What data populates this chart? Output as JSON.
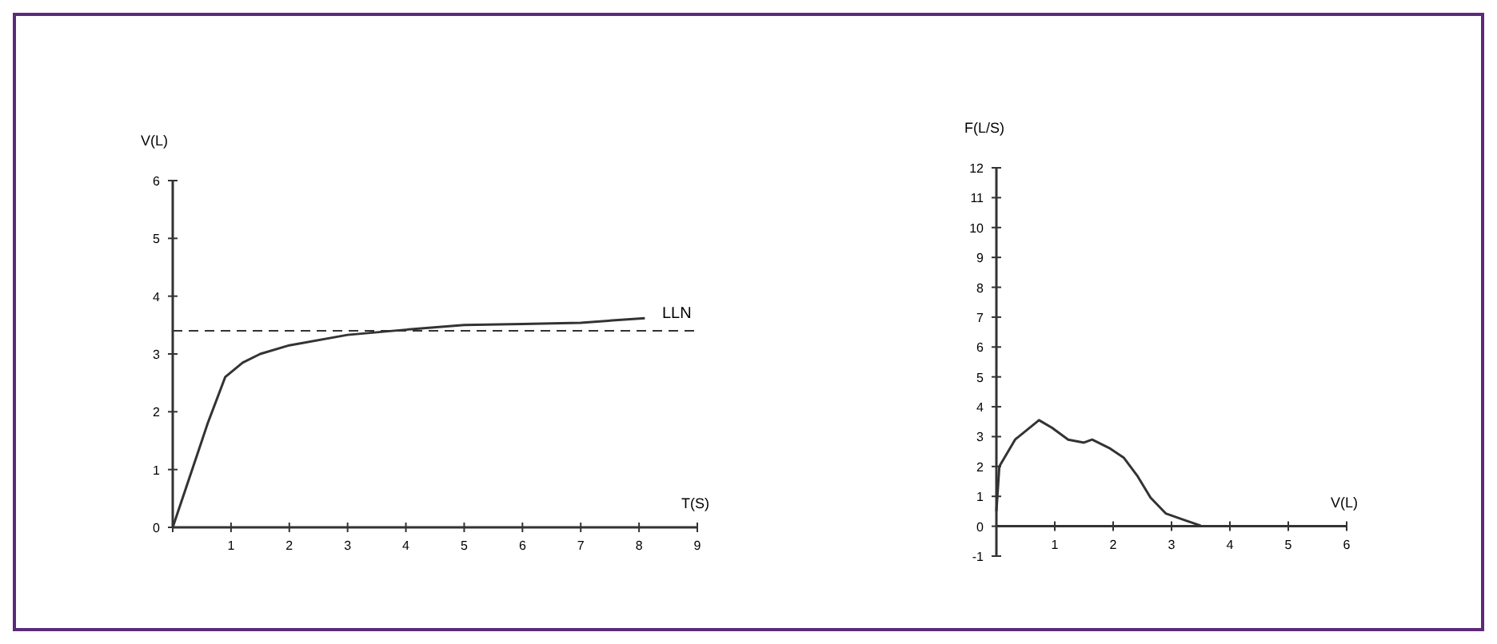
{
  "chart_data": [
    {
      "type": "line",
      "ylabel": "V(L)",
      "xlabel": "T(S)",
      "xlim": [
        0,
        9
      ],
      "ylim": [
        0,
        6
      ],
      "xticks": [
        {
          "value": 0,
          "label": null
        },
        1,
        2,
        3,
        4,
        5,
        6,
        7,
        8,
        9
      ],
      "yticks": [
        0,
        1,
        2,
        3,
        4,
        5,
        6
      ],
      "grid": false,
      "series": [
        {
          "color": "#333333",
          "line_style": "solid",
          "x": [
            0,
            0.3,
            0.6,
            0.9,
            1.2,
            1.5,
            2,
            3,
            4,
            5,
            6,
            7,
            8.1
          ],
          "values": [
            0,
            0.9,
            1.8,
            2.6,
            2.85,
            3.0,
            3.15,
            3.33,
            3.42,
            3.5,
            3.52,
            3.54,
            3.62
          ]
        }
      ],
      "ref_lines": [
        {
          "axis": "y",
          "value": 3.4,
          "label": "LLN",
          "line_style": "dashed",
          "color": "#333333"
        }
      ]
    },
    {
      "type": "line",
      "ylabel": "F(L/S)",
      "xlabel": "V(L)",
      "xlim": [
        0,
        6
      ],
      "ylim": [
        -1,
        12
      ],
      "xticks": [
        {
          "value": 0,
          "label": null
        },
        1,
        2,
        3,
        4,
        5,
        6
      ],
      "yticks": [
        -1,
        0,
        1,
        2,
        3,
        4,
        5,
        6,
        7,
        8,
        9,
        10,
        11,
        12
      ],
      "grid": false,
      "series": [
        {
          "color": "#333333",
          "line_style": "solid",
          "x": [
            0,
            0.05,
            0.32,
            0.73,
            0.95,
            1.23,
            1.5,
            1.64,
            1.95,
            2.18,
            2.41,
            2.64,
            2.9,
            3.23,
            3.5
          ],
          "values": [
            0.5,
            2.0,
            2.9,
            3.55,
            3.3,
            2.9,
            2.8,
            2.9,
            2.6,
            2.3,
            1.7,
            0.96,
            0.43,
            0.2,
            0.02
          ]
        }
      ]
    }
  ]
}
